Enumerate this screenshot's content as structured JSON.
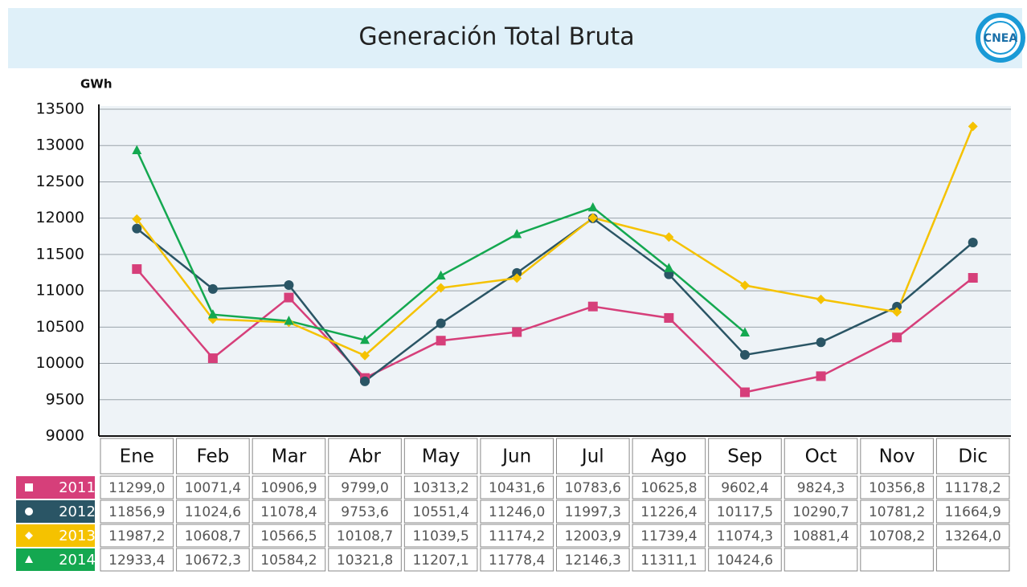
{
  "chart_data": {
    "type": "line",
    "title": "Generación Total Bruta",
    "logo": "CNEA",
    "y_axis_label": "GWh",
    "categories": [
      "Ene",
      "Feb",
      "Mar",
      "Abr",
      "May",
      "Jun",
      "Jul",
      "Ago",
      "Sep",
      "Oct",
      "Nov",
      "Dic"
    ],
    "ylim": [
      9000,
      13500
    ],
    "yticks": [
      9000,
      9500,
      10000,
      10500,
      11000,
      11500,
      12000,
      12500,
      13000,
      13500
    ],
    "grid": true,
    "series": [
      {
        "name": "2011",
        "color": "#d63f7a",
        "marker": "square",
        "values": [
          11299.0,
          10071.4,
          10906.9,
          9799.0,
          10313.2,
          10431.6,
          10783.6,
          10625.8,
          9602.4,
          9824.3,
          10356.8,
          11178.2
        ],
        "value_labels": [
          "11299,0",
          "10071,4",
          "10906,9",
          "9799,0",
          "10313,2",
          "10431,6",
          "10783,6",
          "10625,8",
          "9602,4",
          "9824,3",
          "10356,8",
          "11178,2"
        ]
      },
      {
        "name": "2012",
        "color": "#2a5565",
        "marker": "circle",
        "values": [
          11856.9,
          11024.6,
          11078.4,
          9753.6,
          10551.4,
          11246.0,
          11997.3,
          11226.4,
          10117.5,
          10290.7,
          10781.2,
          11664.9
        ],
        "value_labels": [
          "11856,9",
          "11024,6",
          "11078,4",
          "9753,6",
          "10551,4",
          "11246,0",
          "11997,3",
          "11226,4",
          "10117,5",
          "10290,7",
          "10781,2",
          "11664,9"
        ]
      },
      {
        "name": "2013",
        "color": "#f5c200",
        "marker": "diamond",
        "values": [
          11987.2,
          10608.7,
          10566.5,
          10108.7,
          11039.5,
          11174.2,
          12003.9,
          11739.4,
          11074.3,
          10881.4,
          10708.2,
          13264.0
        ],
        "value_labels": [
          "11987,2",
          "10608,7",
          "10566,5",
          "10108,7",
          "11039,5",
          "11174,2",
          "12003,9",
          "11739,4",
          "11074,3",
          "10881,4",
          "10708,2",
          "13264,0"
        ]
      },
      {
        "name": "2014",
        "color": "#14a850",
        "marker": "triangle",
        "values": [
          12933.4,
          10672.3,
          10584.2,
          10321.8,
          11207.1,
          11778.4,
          12146.3,
          11311.1,
          10424.6,
          null,
          null,
          null
        ],
        "value_labels": [
          "12933,4",
          "10672,3",
          "10584,2",
          "10321,8",
          "11207,1",
          "11778,4",
          "12146,3",
          "11311,1",
          "10424,6",
          null,
          null,
          null
        ]
      }
    ]
  }
}
